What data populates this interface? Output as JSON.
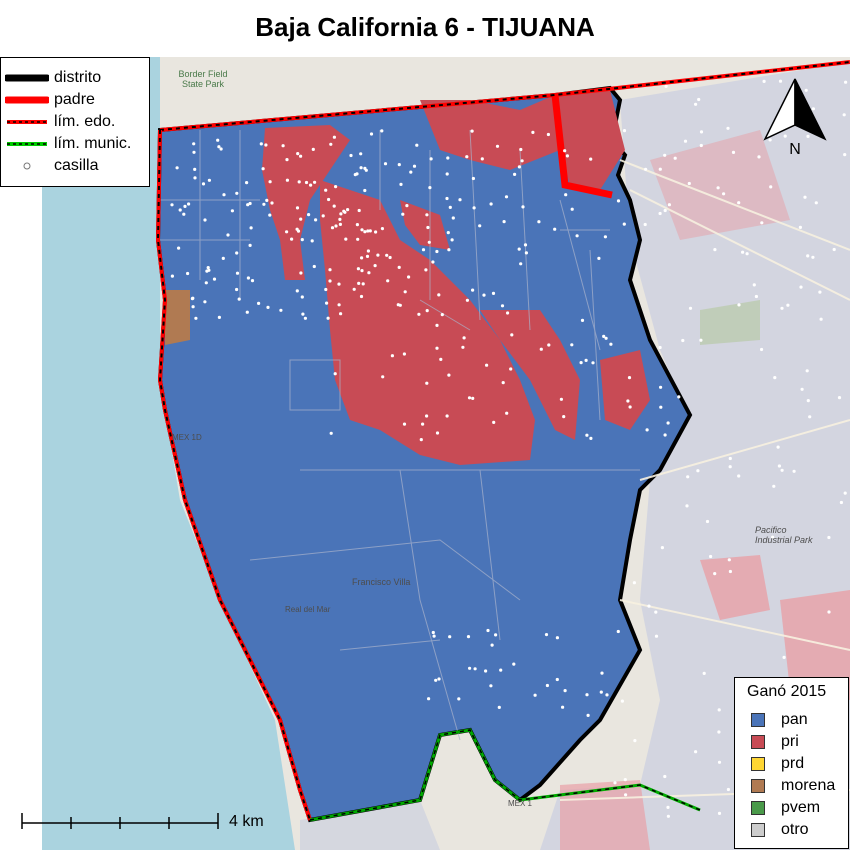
{
  "title": "Baja California 6 - TIJUANA",
  "legend_lines": {
    "items": [
      {
        "label": "distrito",
        "icon": "thick-black-line",
        "color": "#000000"
      },
      {
        "label": "padre",
        "icon": "thick-red-line",
        "color": "#ff0000"
      },
      {
        "label": "lím. edo.",
        "icon": "red-black-dashed-line",
        "color": "#ff0000"
      },
      {
        "label": "lím. munic.",
        "icon": "green-black-dashed-line",
        "color": "#00cc00"
      },
      {
        "label": "casilla",
        "icon": "white-dot",
        "color": "#ffffff"
      }
    ]
  },
  "legend_parties": {
    "title": "Ganó 2015",
    "items": [
      {
        "label": "pan",
        "color": "#4a74b8"
      },
      {
        "label": "pri",
        "color": "#c84b55"
      },
      {
        "label": "prd",
        "color": "#ffd633"
      },
      {
        "label": "morena",
        "color": "#b07a52"
      },
      {
        "label": "pvem",
        "color": "#4a9a4a"
      },
      {
        "label": "otro",
        "color": "#cccccc"
      }
    ]
  },
  "scalebar": {
    "label": "4 km"
  },
  "north_arrow": {
    "label": "N"
  },
  "map_labels": {
    "border_park": "Border Field State Park",
    "francisco_villa": "Francisco Villa",
    "real_del_mar": "Real del Mar",
    "pacifico_park": "Pacifico Industrial Park",
    "mex1": "MEX 1",
    "mex1d": "MEX 1D"
  },
  "colors": {
    "ocean": "#aad3df",
    "land": "#e9e6df",
    "pan": "#4a74b8",
    "pri": "#c84b55"
  }
}
